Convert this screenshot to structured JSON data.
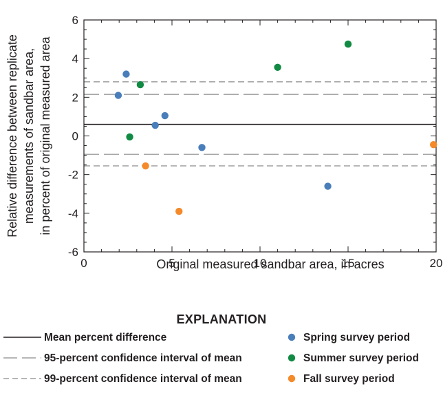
{
  "chart_data": {
    "type": "scatter",
    "xlabel": "Original measured sandbar area, in acres",
    "ylabel_lines": [
      "Relative difference between replicate",
      "measurements of sandbar area,",
      "in percent of original measured area"
    ],
    "xlim": [
      0,
      20
    ],
    "ylim": [
      -6,
      6
    ],
    "x_ticks": [
      0,
      5,
      10,
      15,
      20
    ],
    "y_ticks": [
      -6,
      -4,
      -2,
      0,
      2,
      4,
      6
    ],
    "x_tick_labels": [
      "0",
      "5",
      "10",
      "15",
      "20"
    ],
    "y_tick_labels": [
      "-6",
      "-4",
      "-2",
      "0",
      "2",
      "4",
      "6"
    ],
    "grid": false,
    "series": [
      {
        "name": "Spring survey period",
        "color": "#4a7ebb",
        "points": [
          {
            "x": 2.4,
            "y": 3.2
          },
          {
            "x": 1.95,
            "y": 2.1
          },
          {
            "x": 4.6,
            "y": 1.05
          },
          {
            "x": 4.05,
            "y": 0.55
          },
          {
            "x": 6.7,
            "y": -0.6
          },
          {
            "x": 13.85,
            "y": -2.6
          }
        ]
      },
      {
        "name": "Summer survey period",
        "color": "#118a43",
        "points": [
          {
            "x": 3.2,
            "y": 2.65
          },
          {
            "x": 2.6,
            "y": -0.05
          },
          {
            "x": 11.0,
            "y": 3.55
          },
          {
            "x": 15.0,
            "y": 4.75
          }
        ]
      },
      {
        "name": "Fall survey period",
        "color": "#f58a2a",
        "points": [
          {
            "x": 3.5,
            "y": -1.55
          },
          {
            "x": 5.4,
            "y": -3.9
          },
          {
            "x": 19.85,
            "y": -0.45
          }
        ]
      }
    ],
    "reference_lines": [
      {
        "name": "Mean percent difference",
        "style": "solid",
        "y": 0.6
      },
      {
        "name": "95-percent confidence interval of mean",
        "style": "long-dash",
        "y": [
          2.15,
          -0.95
        ]
      },
      {
        "name": "99-percent confidence interval of mean",
        "style": "short-dash",
        "y": [
          2.8,
          -1.55
        ]
      }
    ],
    "legend": {
      "title": "EXPLANATION",
      "placement": "bottom"
    }
  }
}
